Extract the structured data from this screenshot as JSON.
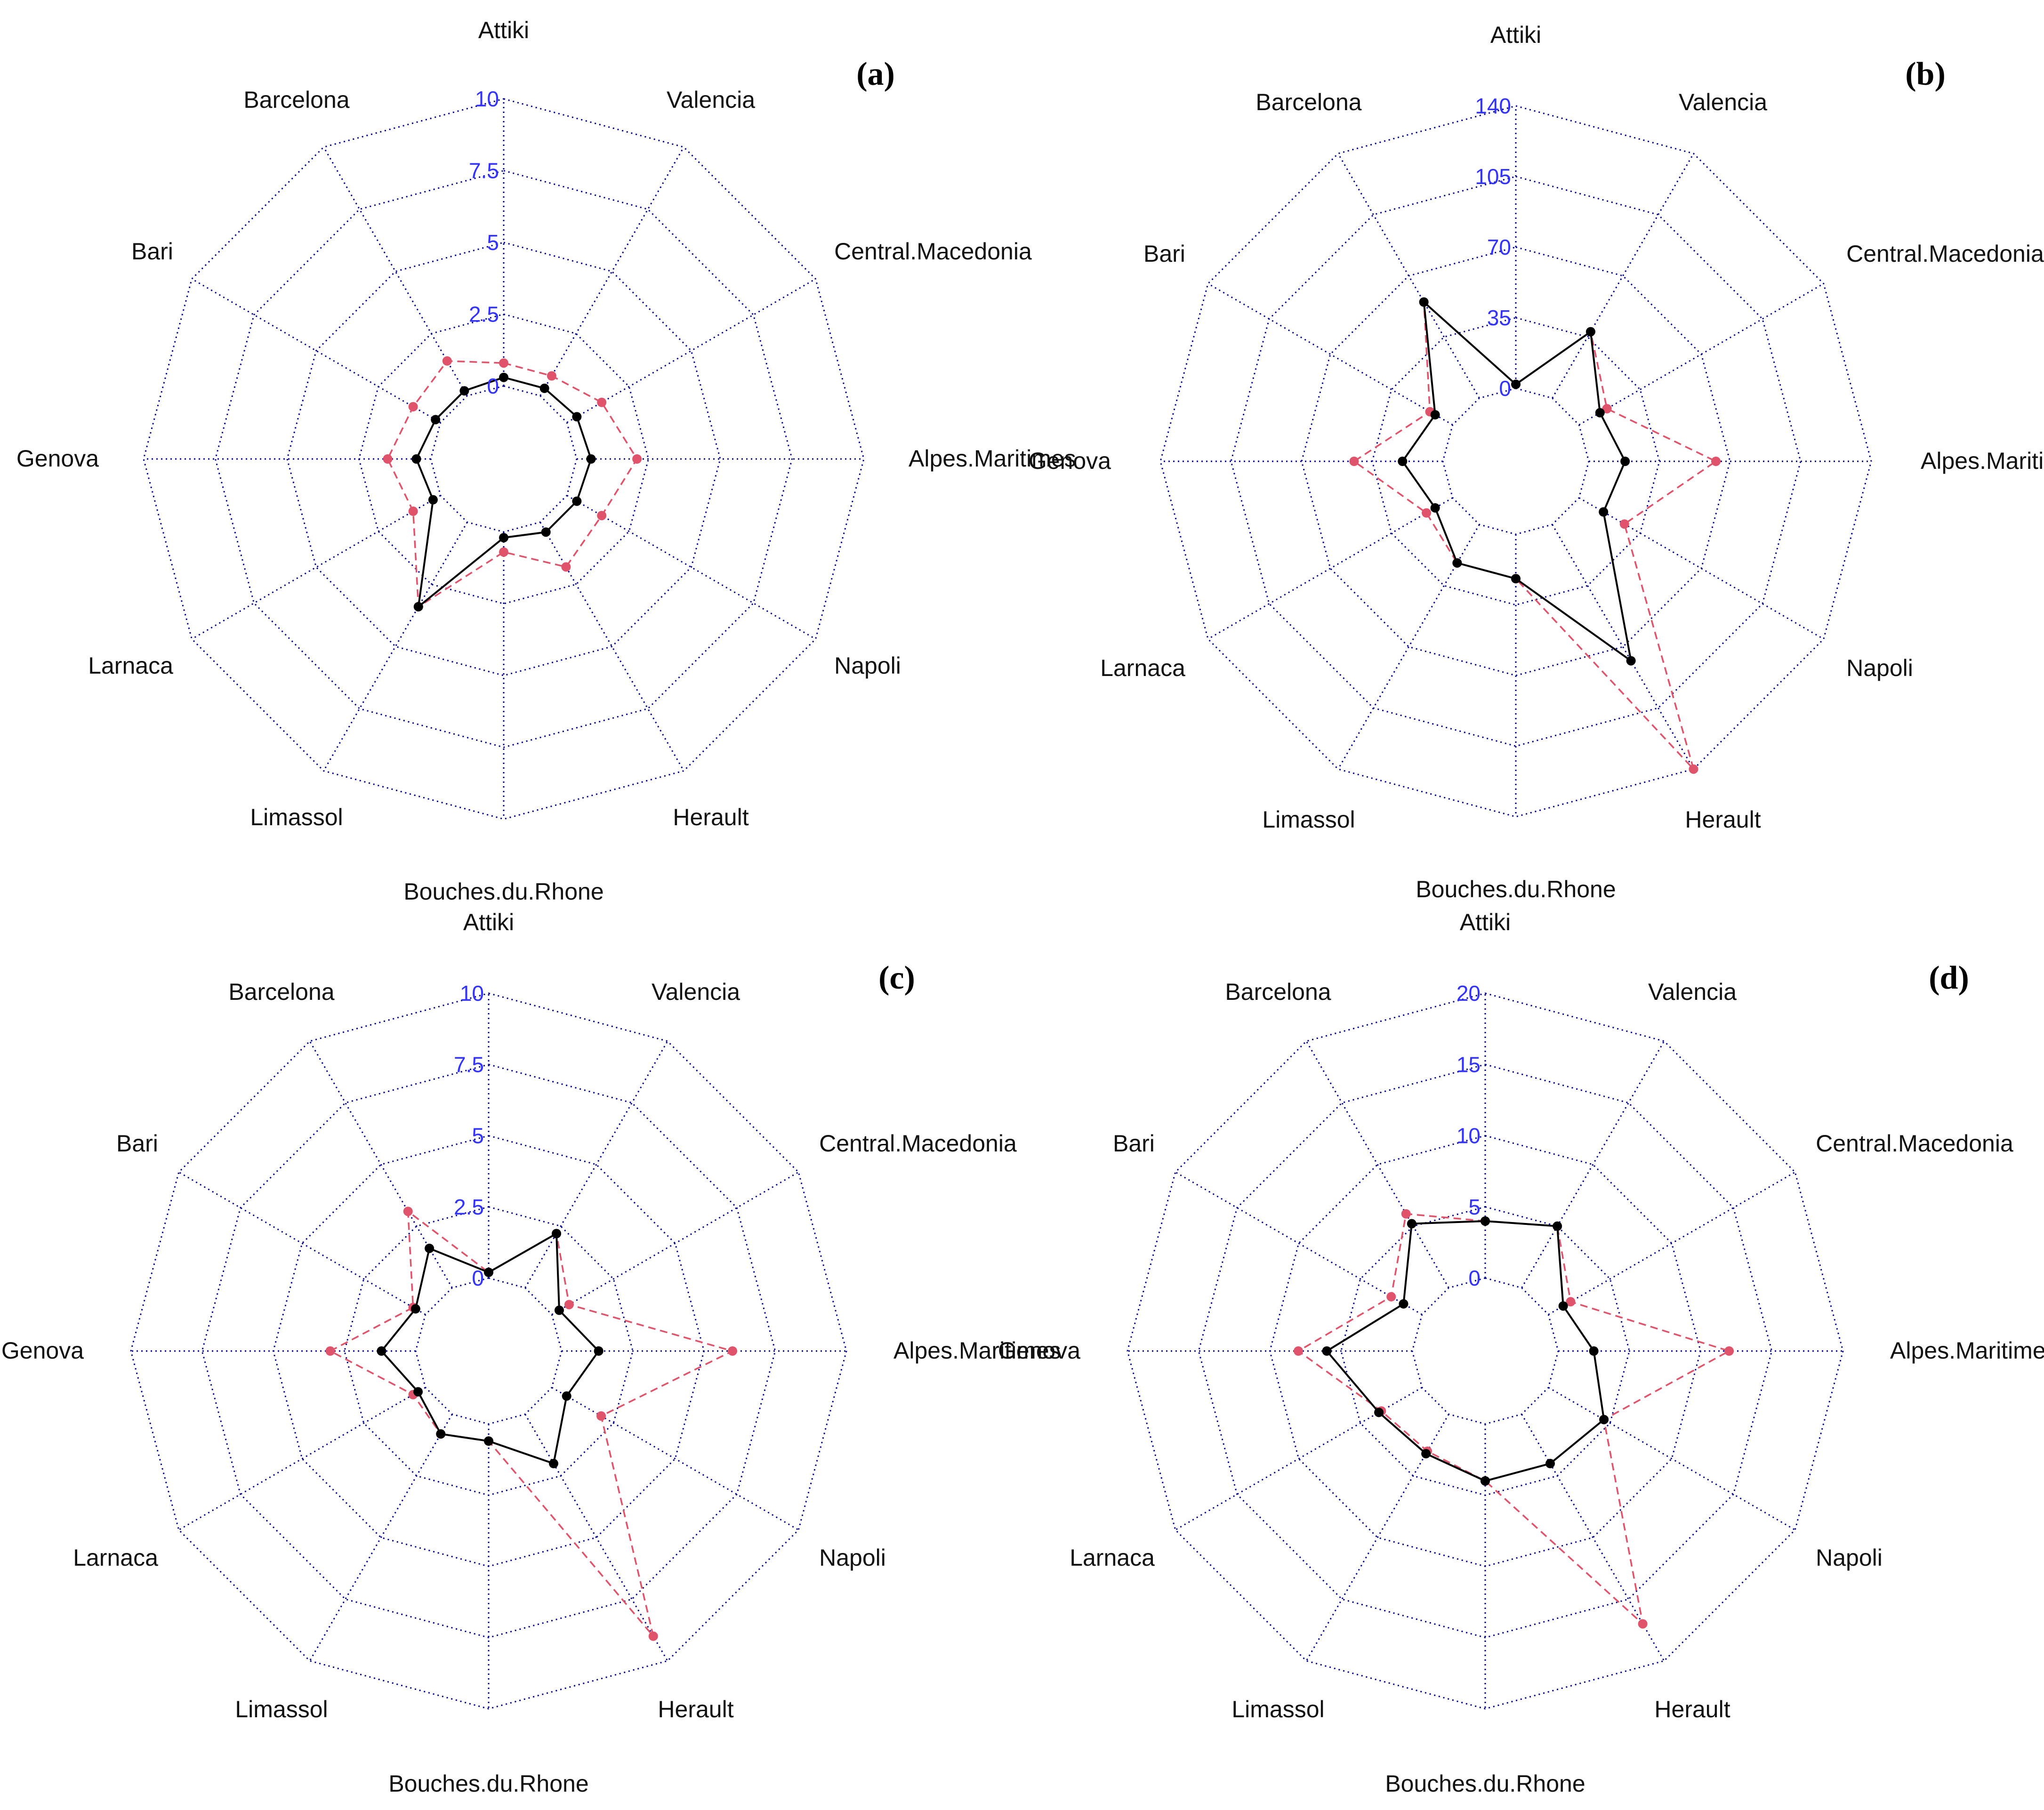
{
  "colors": {
    "grid": "#00008B",
    "tick": "#3333FF",
    "series_a": "#000000",
    "series_b": "#DF536B"
  },
  "chart_data": [
    {
      "type": "radar",
      "panel": "(a)",
      "categories": [
        "Attiki",
        "Valencia",
        "Central.Macedonia",
        "Alpes.Maritimes",
        "Napoli",
        "Herault",
        "Bouches.du.Rhone",
        "Limassol",
        "Larnaca",
        "Genova",
        "Bari",
        "Barcelona"
      ],
      "ticks": [
        "0",
        "2.5",
        "5",
        "7.5",
        "10"
      ],
      "range": [
        0,
        10
      ],
      "series": [
        {
          "name": "black",
          "values": [
            0.3,
            0.3,
            0.4,
            0.5,
            0.4,
            0.4,
            0.2,
            3.4,
            0.3,
            0.5,
            0.2,
            0.2
          ]
        },
        {
          "name": "red",
          "values": [
            0.8,
            0.8,
            1.4,
            2.1,
            1.4,
            1.8,
            0.7,
            3.4,
            1.1,
            1.5,
            1.1,
            1.4
          ]
        }
      ]
    },
    {
      "type": "radar",
      "panel": "(b)",
      "categories": [
        "Attiki",
        "Valencia",
        "Central.Macedonia",
        "Alpes.Maritimes",
        "Napoli",
        "Herault",
        "Bouches.du.Rhone",
        "Limassol",
        "Larnaca",
        "Genova",
        "Bari",
        "Barcelona"
      ],
      "ticks": [
        "0",
        "35",
        "70",
        "105",
        "140"
      ],
      "range": [
        0,
        140
      ],
      "series": [
        {
          "name": "black",
          "values": [
            2,
            38,
            12,
            18,
            14,
            78,
            22,
            22,
            10,
            20,
            10,
            55
          ]
        },
        {
          "name": "red",
          "values": [
            2,
            38,
            16,
            63,
            26,
            140,
            22,
            22,
            15,
            44,
            13,
            55
          ]
        }
      ]
    },
    {
      "type": "radar",
      "panel": "(c)",
      "categories": [
        "Attiki",
        "Valencia",
        "Central.Macedonia",
        "Alpes.Maritimes",
        "Napoli",
        "Herault",
        "Bouches.du.Rhone",
        "Limassol",
        "Larnaca",
        "Genova",
        "Bari",
        "Barcelona"
      ],
      "ticks": [
        "0",
        "2.5",
        "5",
        "7.5",
        "10"
      ],
      "range": [
        0,
        10
      ],
      "series": [
        {
          "name": "black",
          "values": [
            0.2,
            2.2,
            0.3,
            1.3,
            0.6,
            2.0,
            0.6,
            0.8,
            0.3,
            1.2,
            0.4,
            1.6
          ]
        },
        {
          "name": "red",
          "values": [
            0.2,
            2.2,
            0.7,
            6.0,
            2.0,
            9.0,
            0.6,
            0.8,
            0.5,
            3.0,
            0.5,
            3.1
          ]
        }
      ]
    },
    {
      "type": "radar",
      "panel": "(d)",
      "categories": [
        "Attiki",
        "Valencia",
        "Central.Macedonia",
        "Alpes.Maritimes",
        "Napoli",
        "Herault",
        "Bouches.du.Rhone",
        "Limassol",
        "Larnaca",
        "Genova",
        "Bari",
        "Barcelona"
      ],
      "ticks": [
        "0",
        "5",
        "10",
        "15",
        "20"
      ],
      "range": [
        0,
        20
      ],
      "series": [
        {
          "name": "black",
          "values": [
            4.0,
            5.0,
            1.2,
            2.5,
            4.5,
            4.0,
            4.0,
            3.2,
            3.5,
            6.0,
            1.5,
            5.2
          ]
        },
        {
          "name": "red",
          "values": [
            4.0,
            5.0,
            1.8,
            12.0,
            4.5,
            17.0,
            4.0,
            3.0,
            3.3,
            8.0,
            2.5,
            6.0
          ]
        }
      ]
    }
  ]
}
